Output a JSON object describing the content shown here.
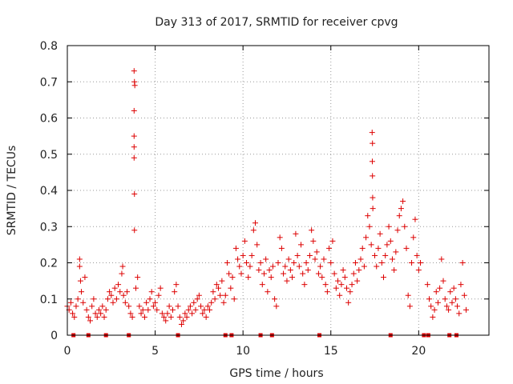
{
  "chart_data": {
    "type": "scatter",
    "title": "Day 313 of 2017, SRMTID for receiver cpvg",
    "xlabel": "GPS time / hours",
    "ylabel": "SRMTID / TECUs",
    "xlim": [
      0,
      24
    ],
    "ylim": [
      0,
      0.8
    ],
    "xticks": [
      0,
      5,
      10,
      15,
      20
    ],
    "xtick_labels": [
      "0",
      "5",
      "10",
      "15",
      "20"
    ],
    "yticks": [
      0,
      0.1,
      0.2,
      0.3,
      0.4,
      0.5,
      0.6,
      0.7,
      0.8
    ],
    "ytick_labels": [
      "0",
      "0.1",
      "0.2",
      "0.3",
      "0.4",
      "0.5",
      "0.6",
      "0.7",
      "0.8"
    ],
    "grid": true,
    "marker_color": "#dd0000",
    "series": [
      {
        "name": "SRMTID",
        "marker": "plus",
        "points": [
          [
            0.0,
            0.08
          ],
          [
            0.1,
            0.07
          ],
          [
            0.2,
            0.09
          ],
          [
            0.3,
            0.06
          ],
          [
            0.4,
            0.05
          ],
          [
            0.5,
            0.08
          ],
          [
            0.6,
            0.1
          ],
          [
            0.7,
            0.19
          ],
          [
            0.7,
            0.21
          ],
          [
            0.75,
            0.15
          ],
          [
            0.8,
            0.12
          ],
          [
            0.9,
            0.09
          ],
          [
            1.0,
            0.16
          ],
          [
            1.1,
            0.07
          ],
          [
            1.2,
            0.05
          ],
          [
            1.3,
            0.04
          ],
          [
            1.4,
            0.08
          ],
          [
            1.5,
            0.1
          ],
          [
            1.6,
            0.06
          ],
          [
            1.7,
            0.05
          ],
          [
            1.8,
            0.07
          ],
          [
            1.9,
            0.06
          ],
          [
            2.0,
            0.08
          ],
          [
            2.1,
            0.05
          ],
          [
            2.2,
            0.07
          ],
          [
            2.3,
            0.1
          ],
          [
            2.4,
            0.12
          ],
          [
            2.5,
            0.11
          ],
          [
            2.6,
            0.09
          ],
          [
            2.7,
            0.13
          ],
          [
            2.8,
            0.1
          ],
          [
            2.9,
            0.14
          ],
          [
            3.0,
            0.12
          ],
          [
            3.1,
            0.17
          ],
          [
            3.15,
            0.19
          ],
          [
            3.2,
            0.11
          ],
          [
            3.3,
            0.09
          ],
          [
            3.4,
            0.12
          ],
          [
            3.5,
            0.08
          ],
          [
            3.6,
            0.06
          ],
          [
            3.7,
            0.05
          ],
          [
            3.8,
            0.73
          ],
          [
            3.82,
            0.7
          ],
          [
            3.84,
            0.69
          ],
          [
            3.8,
            0.62
          ],
          [
            3.8,
            0.55
          ],
          [
            3.8,
            0.52
          ],
          [
            3.8,
            0.49
          ],
          [
            3.82,
            0.39
          ],
          [
            3.82,
            0.29
          ],
          [
            3.9,
            0.13
          ],
          [
            4.0,
            0.16
          ],
          [
            4.1,
            0.08
          ],
          [
            4.2,
            0.06
          ],
          [
            4.3,
            0.07
          ],
          [
            4.4,
            0.05
          ],
          [
            4.5,
            0.09
          ],
          [
            4.6,
            0.07
          ],
          [
            4.7,
            0.1
          ],
          [
            4.8,
            0.12
          ],
          [
            4.9,
            0.08
          ],
          [
            5.0,
            0.09
          ],
          [
            5.1,
            0.07
          ],
          [
            5.2,
            0.11
          ],
          [
            5.3,
            0.13
          ],
          [
            5.4,
            0.06
          ],
          [
            5.5,
            0.05
          ],
          [
            5.6,
            0.04
          ],
          [
            5.7,
            0.06
          ],
          [
            5.8,
            0.08
          ],
          [
            5.9,
            0.05
          ],
          [
            6.0,
            0.07
          ],
          [
            6.1,
            0.12
          ],
          [
            6.2,
            0.14
          ],
          [
            6.3,
            0.08
          ],
          [
            6.4,
            0.05
          ],
          [
            6.5,
            0.03
          ],
          [
            6.6,
            0.04
          ],
          [
            6.7,
            0.06
          ],
          [
            6.8,
            0.05
          ],
          [
            6.9,
            0.07
          ],
          [
            7.0,
            0.08
          ],
          [
            7.1,
            0.06
          ],
          [
            7.2,
            0.09
          ],
          [
            7.3,
            0.07
          ],
          [
            7.4,
            0.1
          ],
          [
            7.5,
            0.11
          ],
          [
            7.6,
            0.08
          ],
          [
            7.7,
            0.06
          ],
          [
            7.8,
            0.07
          ],
          [
            7.9,
            0.05
          ],
          [
            8.0,
            0.08
          ],
          [
            8.1,
            0.07
          ],
          [
            8.2,
            0.09
          ],
          [
            8.3,
            0.12
          ],
          [
            8.4,
            0.1
          ],
          [
            8.5,
            0.14
          ],
          [
            8.6,
            0.13
          ],
          [
            8.7,
            0.11
          ],
          [
            8.8,
            0.15
          ],
          [
            8.9,
            0.09
          ],
          [
            9.0,
            0.11
          ],
          [
            9.1,
            0.2
          ],
          [
            9.2,
            0.17
          ],
          [
            9.3,
            0.13
          ],
          [
            9.4,
            0.16
          ],
          [
            9.5,
            0.1
          ],
          [
            9.6,
            0.24
          ],
          [
            9.7,
            0.21
          ],
          [
            9.8,
            0.19
          ],
          [
            9.9,
            0.17
          ],
          [
            10.0,
            0.22
          ],
          [
            10.1,
            0.26
          ],
          [
            10.2,
            0.2
          ],
          [
            10.3,
            0.16
          ],
          [
            10.4,
            0.19
          ],
          [
            10.5,
            0.22
          ],
          [
            10.6,
            0.29
          ],
          [
            10.7,
            0.31
          ],
          [
            10.8,
            0.25
          ],
          [
            10.9,
            0.18
          ],
          [
            11.0,
            0.2
          ],
          [
            11.1,
            0.14
          ],
          [
            11.2,
            0.17
          ],
          [
            11.3,
            0.21
          ],
          [
            11.4,
            0.12
          ],
          [
            11.5,
            0.18
          ],
          [
            11.6,
            0.16
          ],
          [
            11.7,
            0.19
          ],
          [
            11.8,
            0.1
          ],
          [
            11.9,
            0.08
          ],
          [
            12.0,
            0.2
          ],
          [
            12.1,
            0.27
          ],
          [
            12.2,
            0.24
          ],
          [
            12.3,
            0.17
          ],
          [
            12.4,
            0.19
          ],
          [
            12.5,
            0.15
          ],
          [
            12.6,
            0.21
          ],
          [
            12.7,
            0.18
          ],
          [
            12.8,
            0.16
          ],
          [
            12.9,
            0.2
          ],
          [
            13.0,
            0.28
          ],
          [
            13.1,
            0.22
          ],
          [
            13.2,
            0.19
          ],
          [
            13.3,
            0.25
          ],
          [
            13.4,
            0.17
          ],
          [
            13.5,
            0.14
          ],
          [
            13.6,
            0.2
          ],
          [
            13.7,
            0.18
          ],
          [
            13.8,
            0.22
          ],
          [
            13.9,
            0.29
          ],
          [
            14.0,
            0.26
          ],
          [
            14.1,
            0.21
          ],
          [
            14.2,
            0.23
          ],
          [
            14.3,
            0.17
          ],
          [
            14.4,
            0.19
          ],
          [
            14.5,
            0.16
          ],
          [
            14.6,
            0.21
          ],
          [
            14.7,
            0.14
          ],
          [
            14.8,
            0.12
          ],
          [
            14.9,
            0.24
          ],
          [
            15.0,
            0.2
          ],
          [
            15.1,
            0.26
          ],
          [
            15.2,
            0.17
          ],
          [
            15.3,
            0.13
          ],
          [
            15.4,
            0.15
          ],
          [
            15.5,
            0.11
          ],
          [
            15.6,
            0.14
          ],
          [
            15.7,
            0.18
          ],
          [
            15.8,
            0.16
          ],
          [
            15.9,
            0.13
          ],
          [
            16.0,
            0.09
          ],
          [
            16.1,
            0.12
          ],
          [
            16.2,
            0.14
          ],
          [
            16.3,
            0.17
          ],
          [
            16.4,
            0.2
          ],
          [
            16.5,
            0.15
          ],
          [
            16.6,
            0.18
          ],
          [
            16.7,
            0.21
          ],
          [
            16.8,
            0.24
          ],
          [
            16.9,
            0.19
          ],
          [
            17.0,
            0.27
          ],
          [
            17.1,
            0.33
          ],
          [
            17.2,
            0.3
          ],
          [
            17.3,
            0.25
          ],
          [
            17.35,
            0.56
          ],
          [
            17.37,
            0.53
          ],
          [
            17.36,
            0.48
          ],
          [
            17.37,
            0.44
          ],
          [
            17.38,
            0.38
          ],
          [
            17.39,
            0.35
          ],
          [
            17.5,
            0.22
          ],
          [
            17.6,
            0.19
          ],
          [
            17.7,
            0.24
          ],
          [
            17.8,
            0.28
          ],
          [
            17.9,
            0.2
          ],
          [
            18.0,
            0.16
          ],
          [
            18.1,
            0.22
          ],
          [
            18.2,
            0.25
          ],
          [
            18.3,
            0.3
          ],
          [
            18.4,
            0.26
          ],
          [
            18.5,
            0.21
          ],
          [
            18.6,
            0.18
          ],
          [
            18.7,
            0.23
          ],
          [
            18.8,
            0.29
          ],
          [
            18.9,
            0.33
          ],
          [
            19.0,
            0.35
          ],
          [
            19.1,
            0.37
          ],
          [
            19.2,
            0.3
          ],
          [
            19.3,
            0.24
          ],
          [
            19.4,
            0.11
          ],
          [
            19.5,
            0.08
          ],
          [
            19.6,
            0.2
          ],
          [
            19.7,
            0.27
          ],
          [
            19.8,
            0.32
          ],
          [
            19.9,
            0.22
          ],
          [
            20.0,
            0.18
          ],
          [
            20.1,
            0.2
          ],
          [
            20.5,
            0.14
          ],
          [
            20.6,
            0.1
          ],
          [
            20.7,
            0.08
          ],
          [
            20.8,
            0.05
          ],
          [
            20.9,
            0.07
          ],
          [
            21.0,
            0.12
          ],
          [
            21.1,
            0.09
          ],
          [
            21.2,
            0.13
          ],
          [
            21.3,
            0.21
          ],
          [
            21.4,
            0.15
          ],
          [
            21.5,
            0.1
          ],
          [
            21.6,
            0.08
          ],
          [
            21.7,
            0.07
          ],
          [
            21.8,
            0.12
          ],
          [
            21.9,
            0.09
          ],
          [
            22.0,
            0.13
          ],
          [
            22.1,
            0.1
          ],
          [
            22.2,
            0.08
          ],
          [
            22.3,
            0.06
          ],
          [
            22.4,
            0.14
          ],
          [
            22.5,
            0.2
          ],
          [
            22.6,
            0.11
          ],
          [
            22.7,
            0.07
          ]
        ]
      },
      {
        "name": "zero-level markers",
        "marker": "square",
        "points": [
          [
            0.35,
            0
          ],
          [
            1.2,
            0
          ],
          [
            2.2,
            0
          ],
          [
            3.5,
            0
          ],
          [
            6.3,
            0
          ],
          [
            9.0,
            0
          ],
          [
            9.35,
            0
          ],
          [
            11.0,
            0
          ],
          [
            11.65,
            0
          ],
          [
            14.35,
            0
          ],
          [
            18.4,
            0
          ],
          [
            20.3,
            0
          ],
          [
            20.55,
            0
          ],
          [
            21.75,
            0
          ],
          [
            22.15,
            0
          ]
        ]
      }
    ]
  }
}
